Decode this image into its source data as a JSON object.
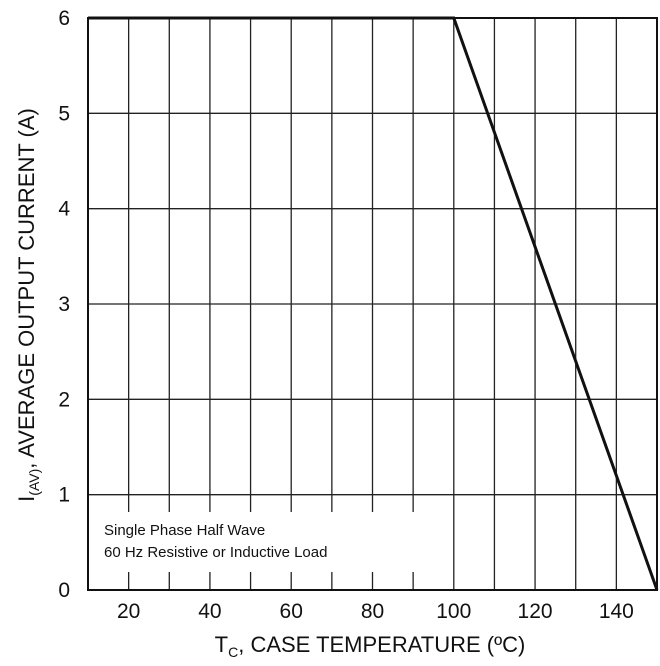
{
  "chart_data": {
    "type": "line",
    "xlabel": {
      "main": "T",
      "sub": "C",
      "rest": ", CASE TEMPERATURE (ºC)"
    },
    "ylabel": {
      "main": "I",
      "sub": "(AV)",
      "rest": ", AVERAGE OUTPUT CURRENT (A)"
    },
    "xlim": [
      10,
      150
    ],
    "ylim": [
      0,
      6
    ],
    "xticks": [
      20,
      40,
      60,
      80,
      100,
      120,
      140
    ],
    "yticks": [
      0,
      1,
      2,
      3,
      4,
      5,
      6
    ],
    "xgrid_step": 10,
    "ygrid_step": 1,
    "grid": true,
    "series": [
      {
        "x": [
          10,
          100,
          150
        ],
        "y": [
          6,
          6,
          0
        ]
      }
    ],
    "annotation": [
      "Single Phase Half Wave",
      "60 Hz Resistive or Inductive Load"
    ]
  }
}
